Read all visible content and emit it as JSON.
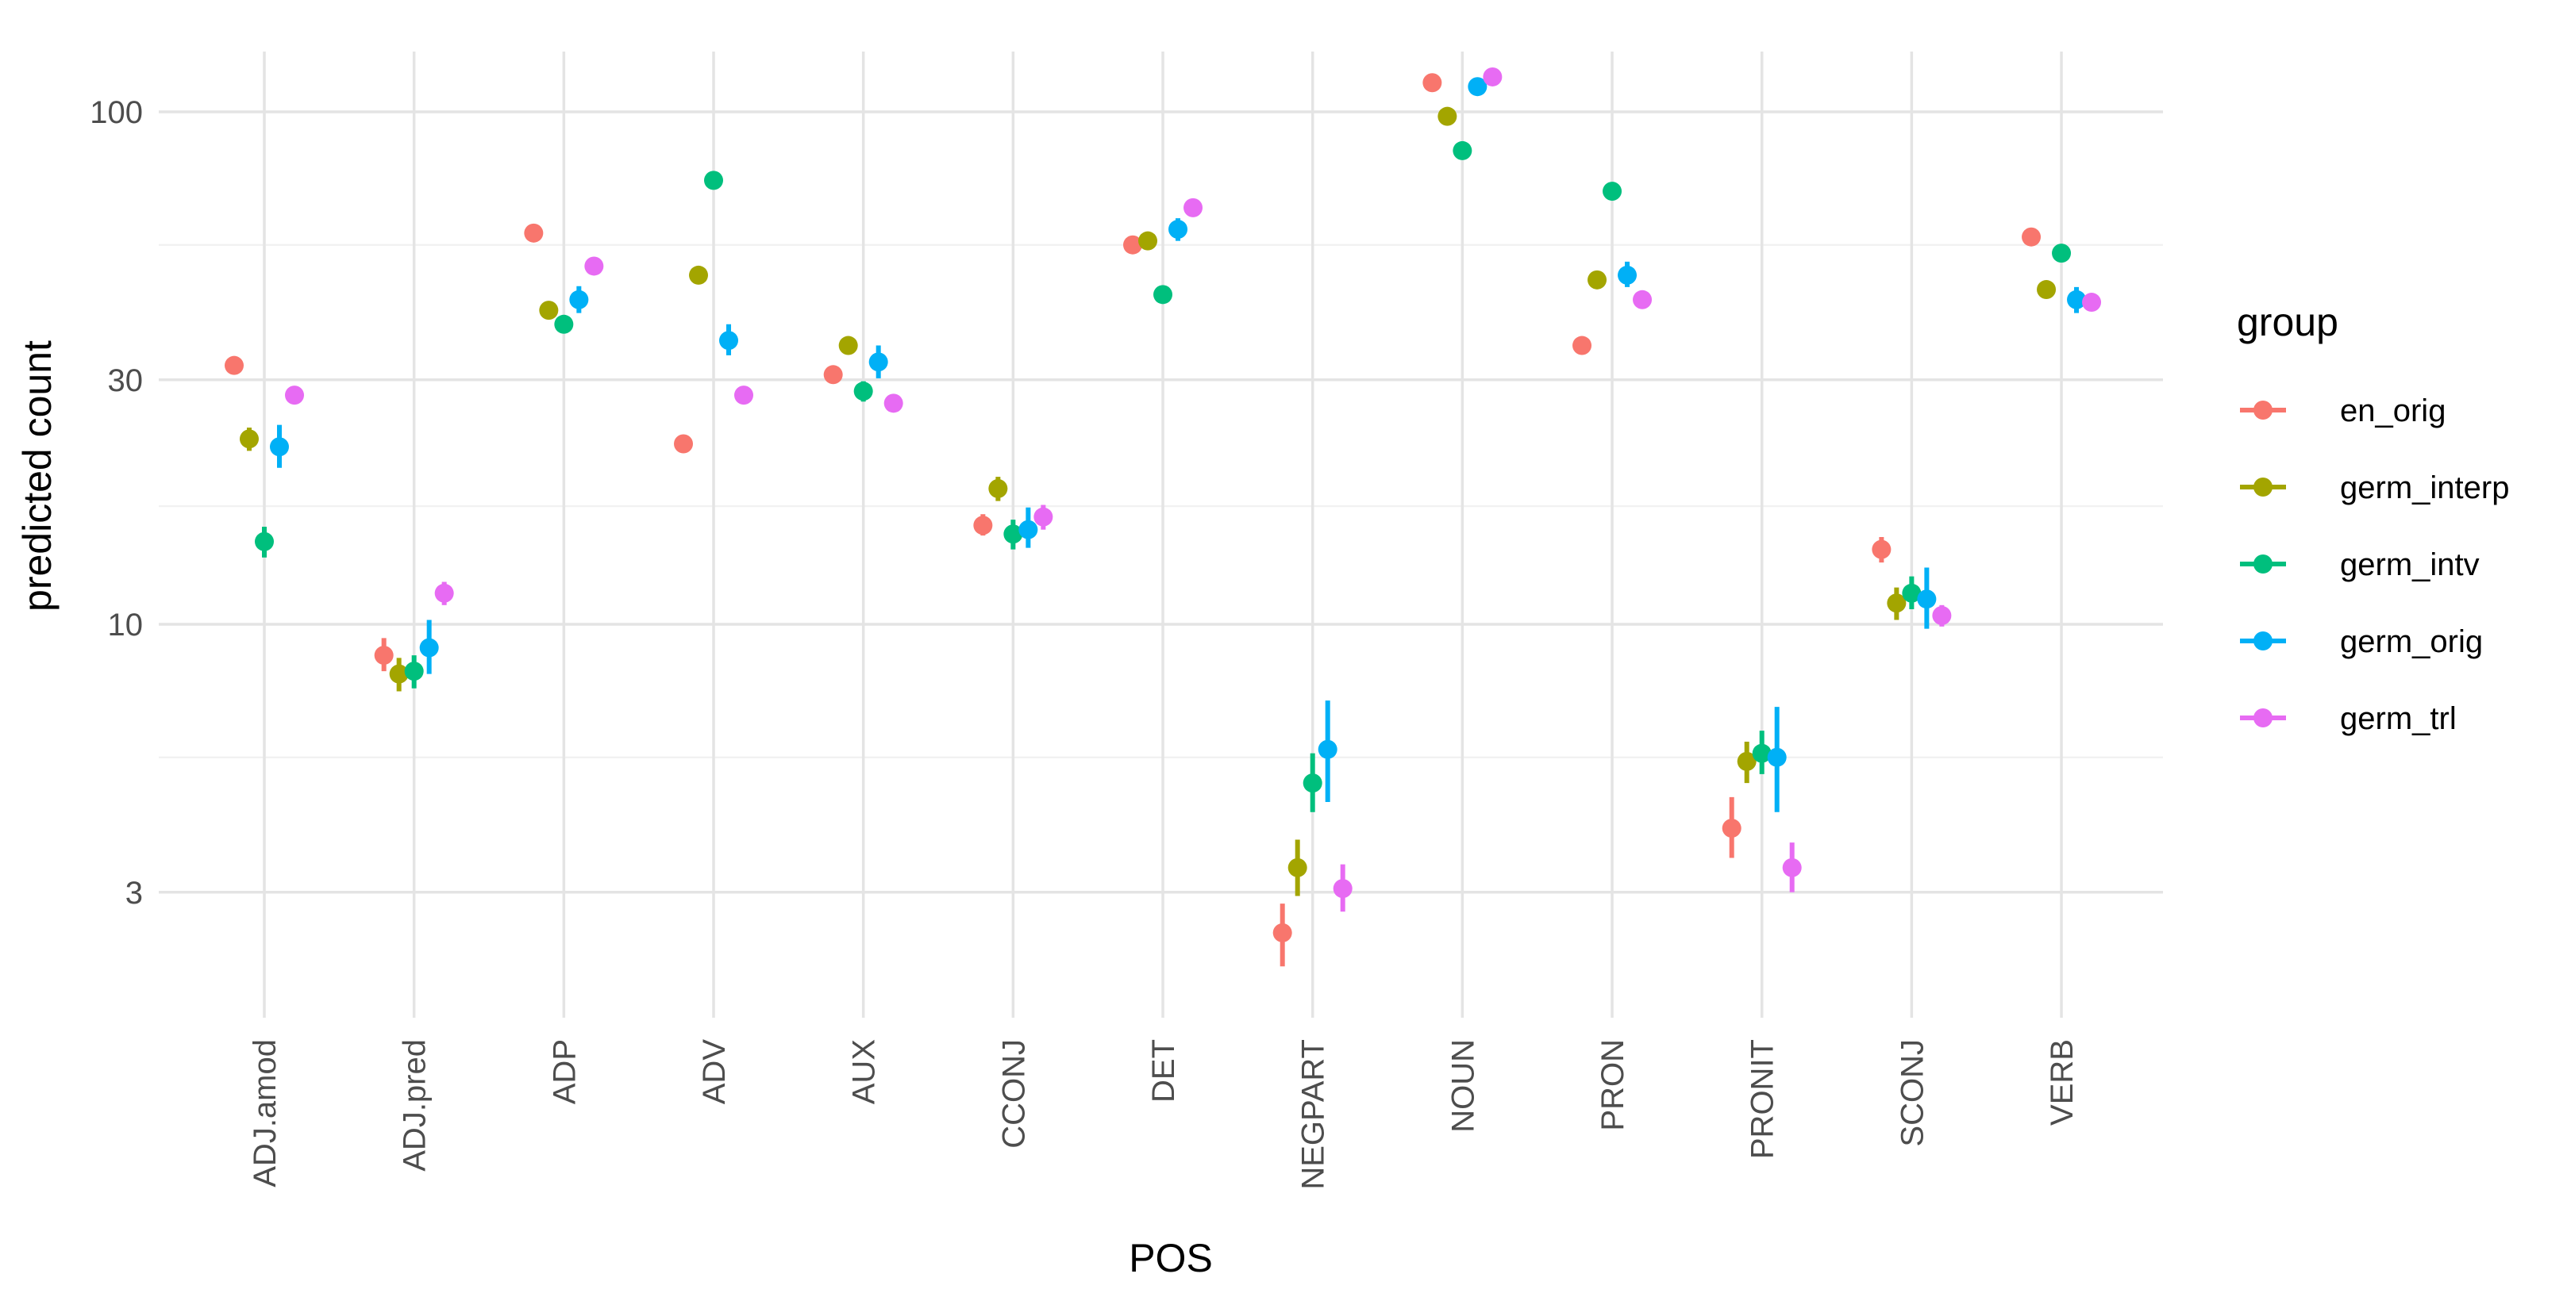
{
  "chart_data": {
    "type": "scatter",
    "subtype": "point-range (dodged, log-scale y)",
    "title": "",
    "xlabel": "POS",
    "ylabel": "predicted count",
    "y_scale": "log10",
    "ylim": [
      1.8,
      150
    ],
    "y_ticks": [
      3,
      10,
      30,
      100
    ],
    "y_tick_labels": [
      "3",
      "10",
      "30",
      "100"
    ],
    "y_minor_breaks": [
      5.5,
      17,
      55
    ],
    "grid": true,
    "categories": [
      "ADJ.amod",
      "ADJ.pred",
      "ADP",
      "ADV",
      "AUX",
      "CCONJ",
      "DET",
      "NEGPART",
      "NOUN",
      "PRON",
      "PRONIT",
      "SCONJ",
      "VERB"
    ],
    "legend": {
      "title": "group",
      "position": "right"
    },
    "series": [
      {
        "name": "en_orig",
        "color": "#F8766D",
        "values": [
          32,
          8.7,
          58,
          22.5,
          30.7,
          15.6,
          55,
          2.5,
          114,
          35,
          4,
          14,
          57
        ],
        "lower": [
          null,
          8.1,
          null,
          null,
          null,
          14.9,
          null,
          2.15,
          null,
          null,
          3.5,
          13.2,
          null
        ],
        "upper": [
          null,
          9.4,
          null,
          null,
          null,
          16.4,
          null,
          2.85,
          null,
          null,
          4.6,
          14.8,
          null
        ]
      },
      {
        "name": "germ_interp",
        "color": "#A3A500",
        "values": [
          23,
          8,
          41,
          48,
          35,
          18.4,
          56,
          3.35,
          98,
          47,
          5.4,
          11,
          45
        ],
        "lower": [
          21.8,
          7.4,
          39.5,
          null,
          null,
          17.4,
          null,
          2.95,
          null,
          null,
          4.9,
          10.2,
          null
        ],
        "upper": [
          24.2,
          8.6,
          42.5,
          null,
          null,
          19.4,
          null,
          3.8,
          null,
          null,
          5.9,
          11.8,
          null
        ]
      },
      {
        "name": "germ_intv",
        "color": "#00BF7D",
        "values": [
          14.5,
          8.1,
          38.5,
          73.5,
          28.5,
          15,
          44,
          4.9,
          84,
          70,
          5.6,
          11.5,
          53
        ],
        "lower": [
          13.5,
          7.5,
          37.2,
          null,
          27.2,
          14,
          null,
          4.3,
          null,
          null,
          5.1,
          10.7,
          null
        ],
        "upper": [
          15.5,
          8.7,
          39.8,
          null,
          29.8,
          16,
          null,
          5.6,
          null,
          null,
          6.2,
          12.4,
          null
        ]
      },
      {
        "name": "germ_orig",
        "color": "#00B0F6",
        "values": [
          22.2,
          9,
          43,
          35.8,
          32.5,
          15.3,
          59,
          5.7,
          112,
          48,
          5.5,
          11.2,
          43
        ],
        "lower": [
          20.2,
          8,
          40.5,
          33.5,
          30.2,
          14.1,
          56,
          4.5,
          108,
          45.5,
          4.3,
          9.8,
          40.5
        ],
        "upper": [
          24.5,
          10.2,
          45.7,
          38.5,
          35,
          16.9,
          62,
          7.1,
          116,
          51,
          6.9,
          12.9,
          45.5
        ]
      },
      {
        "name": "germ_trl",
        "color": "#E76BF3",
        "values": [
          28,
          11.5,
          50,
          28,
          27,
          16.2,
          65,
          3.05,
          117,
          43,
          3.35,
          10.4,
          42.5
        ],
        "lower": [
          null,
          10.9,
          null,
          null,
          null,
          15.3,
          null,
          2.75,
          null,
          null,
          3.0,
          9.9,
          null
        ],
        "upper": [
          null,
          12.1,
          null,
          null,
          null,
          17.1,
          null,
          3.4,
          null,
          null,
          3.75,
          10.9,
          null
        ]
      }
    ]
  }
}
